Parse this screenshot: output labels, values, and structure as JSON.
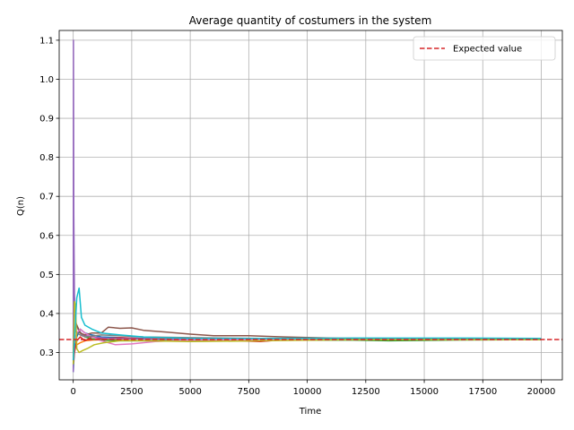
{
  "chart_data": {
    "type": "line",
    "title": "Average quantity of costumers in the system",
    "xlabel": "Time",
    "ylabel": "Q(n)",
    "xlim": [
      -600,
      20900
    ],
    "ylim": [
      0.23,
      1.125
    ],
    "xticks": [
      0,
      2500,
      5000,
      7500,
      10000,
      12500,
      15000,
      17500,
      20000
    ],
    "xtick_labels": [
      "0",
      "2500",
      "5000",
      "7500",
      "10000",
      "12500",
      "15000",
      "17500",
      "20000"
    ],
    "yticks": [
      0.3,
      0.4,
      0.5,
      0.6,
      0.7,
      0.8,
      0.9,
      1.0,
      1.1
    ],
    "ytick_labels": [
      "0.3",
      "0.4",
      "0.5",
      "0.6",
      "0.7",
      "0.8",
      "0.9",
      "1.0",
      "1.1"
    ],
    "grid": true,
    "legend_position": "top-right",
    "legend_entries": [
      {
        "label": "Expected value",
        "color": "#d62728",
        "style": "dashed"
      }
    ],
    "reference_line": {
      "label": "Expected value",
      "y": 0.3333,
      "color": "#d62728",
      "style": "dashed"
    },
    "series": [
      {
        "color": "#1f77b4",
        "x": [
          0,
          50,
          150,
          300,
          500,
          800,
          1200,
          2000,
          3000,
          5000,
          8000,
          12000,
          16000,
          20000
        ],
        "y": [
          0.25,
          0.31,
          0.34,
          0.36,
          0.35,
          0.345,
          0.34,
          0.338,
          0.336,
          0.335,
          0.334,
          0.334,
          0.334,
          0.334
        ]
      },
      {
        "color": "#ff7f0e",
        "x": [
          0,
          50,
          150,
          300,
          500,
          800,
          1200,
          2000,
          3000,
          5000,
          8000,
          12000,
          16000,
          20000
        ],
        "y": [
          0.3,
          0.33,
          0.32,
          0.325,
          0.33,
          0.332,
          0.333,
          0.334,
          0.335,
          0.334,
          0.334,
          0.333,
          0.333,
          0.333
        ]
      },
      {
        "color": "#2ca02c",
        "x": [
          0,
          50,
          150,
          300,
          500,
          800,
          1200,
          2000,
          3000,
          5000,
          8000,
          12000,
          13500,
          16000,
          20000
        ],
        "y": [
          0.28,
          0.35,
          0.37,
          0.35,
          0.34,
          0.335,
          0.332,
          0.33,
          0.33,
          0.33,
          0.332,
          0.332,
          0.33,
          0.332,
          0.333
        ]
      },
      {
        "color": "#d62728",
        "x": [
          0,
          50,
          150,
          300,
          500,
          800,
          1200,
          2000,
          3000,
          5000,
          7000,
          8000,
          9000,
          12000,
          16000,
          20000
        ],
        "y": [
          0.27,
          0.3,
          0.33,
          0.34,
          0.33,
          0.34,
          0.335,
          0.338,
          0.335,
          0.333,
          0.33,
          0.328,
          0.333,
          0.334,
          0.334,
          0.334
        ]
      },
      {
        "color": "#9467bd",
        "x": [
          0,
          10,
          25,
          50,
          100,
          200,
          400,
          800,
          1500,
          2500,
          4000,
          6000,
          10000,
          15000,
          20000
        ],
        "y": [
          0.25,
          1.1,
          0.65,
          0.45,
          0.38,
          0.36,
          0.345,
          0.34,
          0.336,
          0.335,
          0.334,
          0.334,
          0.334,
          0.334,
          0.334
        ]
      },
      {
        "color": "#8c564b",
        "x": [
          0,
          50,
          150,
          300,
          500,
          800,
          1200,
          1500,
          2000,
          2500,
          3000,
          4000,
          5000,
          6000,
          7500,
          9000,
          11000,
          14000,
          17000,
          20000
        ],
        "y": [
          0.3,
          0.36,
          0.37,
          0.35,
          0.345,
          0.35,
          0.35,
          0.365,
          0.362,
          0.363,
          0.357,
          0.352,
          0.347,
          0.343,
          0.343,
          0.34,
          0.337,
          0.336,
          0.335,
          0.334
        ]
      },
      {
        "color": "#e377c2",
        "x": [
          0,
          50,
          150,
          300,
          500,
          800,
          1200,
          1800,
          2500,
          3500,
          5000,
          8000,
          12000,
          16000,
          20000
        ],
        "y": [
          0.28,
          0.33,
          0.35,
          0.36,
          0.35,
          0.34,
          0.33,
          0.32,
          0.322,
          0.328,
          0.332,
          0.333,
          0.334,
          0.334,
          0.334
        ]
      },
      {
        "color": "#7f7f7f",
        "x": [
          0,
          50,
          150,
          300,
          500,
          800,
          1200,
          2000,
          3000,
          5000,
          8000,
          12000,
          16000,
          20000
        ],
        "y": [
          0.29,
          0.36,
          0.35,
          0.345,
          0.34,
          0.342,
          0.345,
          0.343,
          0.34,
          0.338,
          0.336,
          0.335,
          0.334,
          0.334
        ]
      },
      {
        "color": "#bcbd22",
        "x": [
          0,
          50,
          100,
          150,
          250,
          400,
          600,
          900,
          1300,
          2000,
          3000,
          5000,
          8000,
          12000,
          16000,
          20000
        ],
        "y": [
          0.27,
          0.43,
          0.42,
          0.31,
          0.3,
          0.305,
          0.31,
          0.32,
          0.325,
          0.33,
          0.33,
          0.328,
          0.33,
          0.333,
          0.333,
          0.333
        ]
      },
      {
        "color": "#17becf",
        "x": [
          0,
          50,
          150,
          250,
          350,
          500,
          800,
          1200,
          2000,
          3000,
          5000,
          8000,
          12000,
          15000,
          17000,
          20000
        ],
        "y": [
          0.28,
          0.33,
          0.44,
          0.465,
          0.39,
          0.37,
          0.36,
          0.35,
          0.345,
          0.34,
          0.336,
          0.336,
          0.337,
          0.337,
          0.337,
          0.336
        ]
      }
    ]
  }
}
